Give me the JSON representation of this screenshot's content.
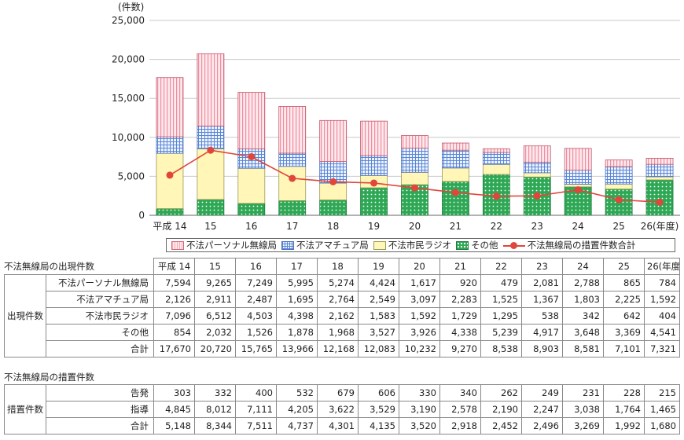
{
  "chart_data": {
    "type": "bar",
    "stacked": true,
    "y_unit_label": "(件数)",
    "categories": [
      "平成 14",
      "15",
      "16",
      "17",
      "18",
      "19",
      "20",
      "21",
      "22",
      "23",
      "24",
      "25",
      "26(年度)"
    ],
    "ylim": [
      0,
      25000
    ],
    "yticks": [
      "0",
      "5,000",
      "10,000",
      "15,000",
      "20,000",
      "25,000"
    ],
    "series": [
      {
        "name": "その他",
        "values": [
          854,
          2032,
          1526,
          1878,
          1968,
          3527,
          3926,
          4338,
          5239,
          4917,
          3648,
          3369,
          4541
        ],
        "color": "#2fa856"
      },
      {
        "name": "不法市民ラジオ",
        "values": [
          7096,
          6512,
          4503,
          4398,
          2162,
          1583,
          1592,
          1729,
          1295,
          538,
          342,
          642,
          404
        ],
        "color": "#fff6b8"
      },
      {
        "name": "不法アマチュア局",
        "values": [
          2126,
          2911,
          2487,
          1695,
          2764,
          2549,
          3097,
          2283,
          1525,
          1367,
          1803,
          2225,
          1592
        ],
        "color": "#5a86d4"
      },
      {
        "name": "不法パーソナル無線局",
        "values": [
          7594,
          9265,
          7249,
          5995,
          5274,
          4424,
          1617,
          920,
          479,
          2081,
          2788,
          865,
          784
        ],
        "color": "#f4a9b6"
      }
    ],
    "line": {
      "name": "不法無線局の措置件数合計",
      "values": [
        5148,
        8344,
        7511,
        4737,
        4301,
        4135,
        3520,
        2918,
        2452,
        2496,
        3269,
        1992,
        1680
      ],
      "color": "#e0463a"
    }
  },
  "legend": {
    "personal": "不法パーソナル無線局",
    "amateur": "不法アマチュア局",
    "cb": "不法市民ラジオ",
    "other": "その他",
    "line": "不法無線局の措置件数合計"
  },
  "table1": {
    "title": "不法無線局の出現件数",
    "group": "出現件数",
    "headers": [
      "平成 14",
      "15",
      "16",
      "17",
      "18",
      "19",
      "20",
      "21",
      "22",
      "23",
      "24",
      "25",
      "26(年度)"
    ],
    "rows": [
      {
        "label": "不法パーソナル無線局",
        "values": [
          "7,594",
          "9,265",
          "7,249",
          "5,995",
          "5,274",
          "4,424",
          "1,617",
          "920",
          "479",
          "2,081",
          "2,788",
          "865",
          "784"
        ]
      },
      {
        "label": "不法アマチュア局",
        "values": [
          "2,126",
          "2,911",
          "2,487",
          "1,695",
          "2,764",
          "2,549",
          "3,097",
          "2,283",
          "1,525",
          "1,367",
          "1,803",
          "2,225",
          "1,592"
        ]
      },
      {
        "label": "不法市民ラジオ",
        "values": [
          "7,096",
          "6,512",
          "4,503",
          "4,398",
          "2,162",
          "1,583",
          "1,592",
          "1,729",
          "1,295",
          "538",
          "342",
          "642",
          "404"
        ]
      },
      {
        "label": "その他",
        "values": [
          "854",
          "2,032",
          "1,526",
          "1,878",
          "1,968",
          "3,527",
          "3,926",
          "4,338",
          "5,239",
          "4,917",
          "3,648",
          "3,369",
          "4,541"
        ]
      },
      {
        "label": "合計",
        "values": [
          "17,670",
          "20,720",
          "15,765",
          "13,966",
          "12,168",
          "12,083",
          "10,232",
          "9,270",
          "8,538",
          "8,903",
          "8,581",
          "7,101",
          "7,321"
        ]
      }
    ]
  },
  "table2": {
    "title": "不法無線局の措置件数",
    "group": "措置件数",
    "rows": [
      {
        "label": "告発",
        "values": [
          "303",
          "332",
          "400",
          "532",
          "679",
          "606",
          "330",
          "340",
          "262",
          "249",
          "231",
          "228",
          "215"
        ]
      },
      {
        "label": "指導",
        "values": [
          "4,845",
          "8,012",
          "7,111",
          "4,205",
          "3,622",
          "3,529",
          "3,190",
          "2,578",
          "2,190",
          "2,247",
          "3,038",
          "1,764",
          "1,465"
        ]
      },
      {
        "label": "合計",
        "values": [
          "5,148",
          "8,344",
          "7,511",
          "4,737",
          "4,301",
          "4,135",
          "3,520",
          "2,918",
          "2,452",
          "2,496",
          "3,269",
          "1,992",
          "1,680"
        ]
      }
    ]
  }
}
